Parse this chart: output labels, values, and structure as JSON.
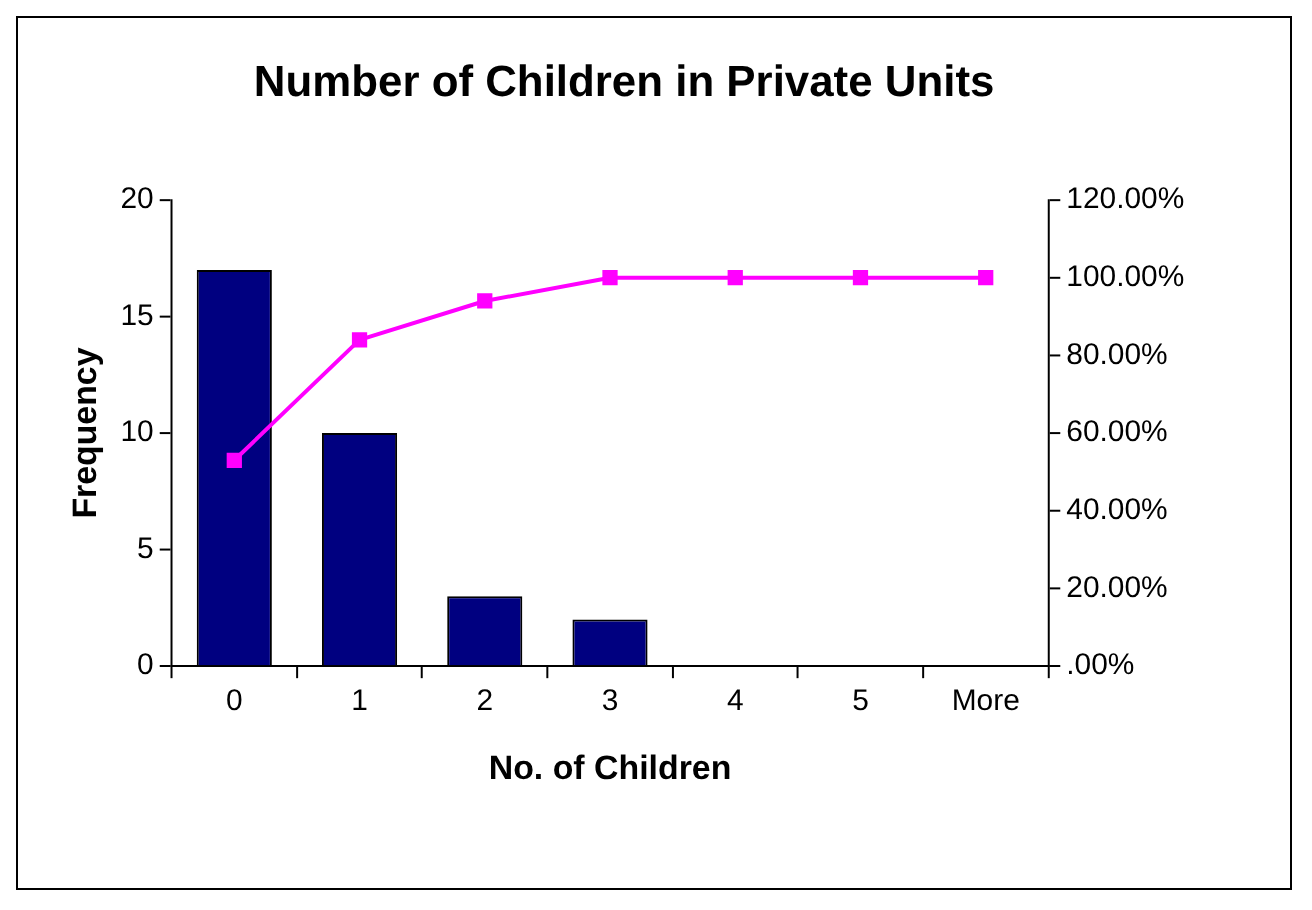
{
  "chart_data": {
    "type": "bar",
    "title": "Number of Children in Private Units",
    "xlabel": "No. of Children",
    "ylabel": "Frequency",
    "categories": [
      "0",
      "1",
      "2",
      "3",
      "4",
      "5",
      "More"
    ],
    "series": [
      {
        "color": "#000080",
        "values": [
          17,
          10,
          3,
          2,
          0,
          0,
          0
        ]
      },
      {
        "type": "line",
        "axis": "y2",
        "color": "#ff00ff",
        "marker": "square",
        "values": [
          53,
          84,
          94,
          100,
          100,
          100,
          100
        ]
      }
    ],
    "ylim": [
      0,
      20
    ],
    "yticks": [
      0,
      5,
      10,
      15,
      20
    ],
    "y2lim": [
      0,
      120
    ],
    "y2ticks": [
      {
        "value": 0,
        "label": ".00%"
      },
      {
        "value": 20,
        "label": "20.00%"
      },
      {
        "value": 40,
        "label": "40.00%"
      },
      {
        "value": 60,
        "label": "60.00%"
      },
      {
        "value": 80,
        "label": "80.00%"
      },
      {
        "value": 100,
        "label": "100.00%"
      },
      {
        "value": 120,
        "label": "120.00%"
      }
    ],
    "grid": false,
    "legend": false
  }
}
